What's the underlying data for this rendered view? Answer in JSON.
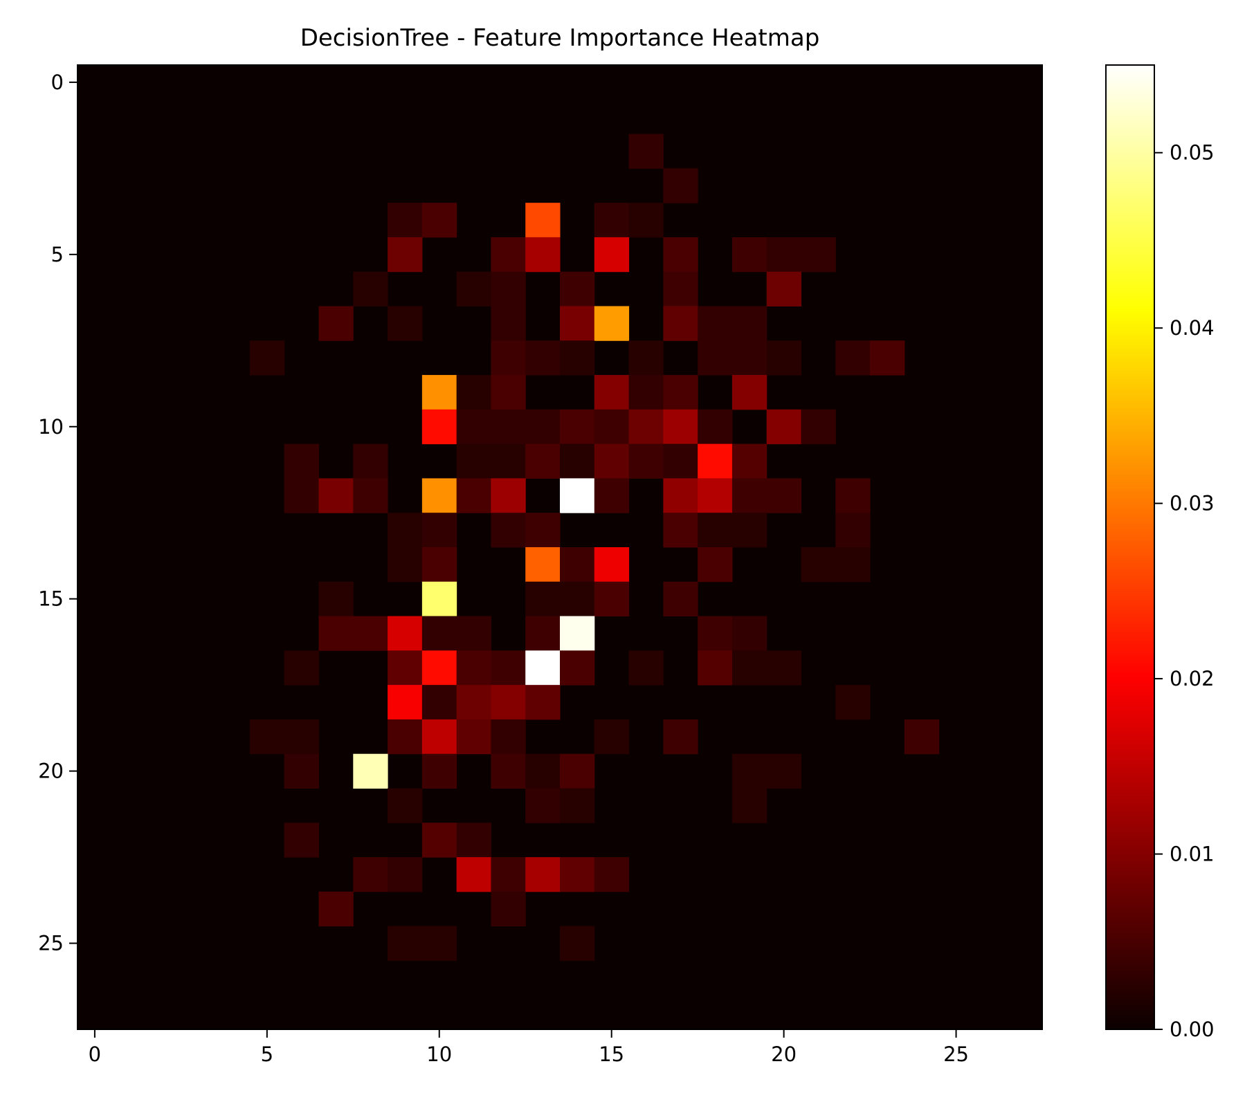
{
  "chart_data": {
    "type": "heatmap",
    "title": "DecisionTree - Feature Importance Heatmap",
    "xlabel": "",
    "ylabel": "",
    "grid": false,
    "shape": [
      28,
      28
    ],
    "colormap": "hot",
    "colorbar": {
      "range": [
        0,
        0.055
      ],
      "ticks": [
        0,
        0.01,
        0.02,
        0.03,
        0.04,
        0.05
      ],
      "tick_labels": [
        "0.00",
        "0.01",
        "0.02",
        "0.03",
        "0.04",
        "0.05"
      ]
    },
    "x_ticks": [
      0,
      5,
      10,
      15,
      20,
      25
    ],
    "x_tick_labels": [
      "0",
      "5",
      "10",
      "15",
      "20",
      "25"
    ],
    "y_ticks": [
      0,
      5,
      10,
      15,
      20,
      25
    ],
    "y_tick_labels": [
      "0",
      "5",
      "10",
      "15",
      "20",
      "25"
    ],
    "cells": [
      [
        16,
        2,
        0.002
      ],
      [
        17,
        3,
        0.002
      ],
      [
        9,
        4,
        0.002
      ],
      [
        10,
        4,
        0.004
      ],
      [
        13,
        4,
        0.026
      ],
      [
        15,
        4,
        0.002
      ],
      [
        16,
        4,
        0.001
      ],
      [
        9,
        5,
        0.007
      ],
      [
        12,
        5,
        0.004
      ],
      [
        13,
        5,
        0.012
      ],
      [
        15,
        5,
        0.016
      ],
      [
        17,
        5,
        0.004
      ],
      [
        19,
        5,
        0.003
      ],
      [
        20,
        5,
        0.002
      ],
      [
        21,
        5,
        0.002
      ],
      [
        8,
        6,
        0.001
      ],
      [
        11,
        6,
        0.001
      ],
      [
        12,
        6,
        0.002
      ],
      [
        14,
        6,
        0.003
      ],
      [
        17,
        6,
        0.003
      ],
      [
        20,
        6,
        0.007
      ],
      [
        7,
        7,
        0.004
      ],
      [
        9,
        7,
        0.001
      ],
      [
        12,
        7,
        0.002
      ],
      [
        14,
        7,
        0.008
      ],
      [
        15,
        7,
        0.033
      ],
      [
        17,
        7,
        0.006
      ],
      [
        18,
        7,
        0.002
      ],
      [
        19,
        7,
        0.002
      ],
      [
        5,
        8,
        0.001
      ],
      [
        12,
        8,
        0.003
      ],
      [
        13,
        8,
        0.002
      ],
      [
        14,
        8,
        0.001
      ],
      [
        16,
        8,
        0.001
      ],
      [
        18,
        8,
        0.002
      ],
      [
        19,
        8,
        0.002
      ],
      [
        20,
        8,
        0.001
      ],
      [
        22,
        8,
        0.002
      ],
      [
        23,
        8,
        0.004
      ],
      [
        10,
        9,
        0.032
      ],
      [
        11,
        9,
        0.001
      ],
      [
        12,
        9,
        0.004
      ],
      [
        15,
        9,
        0.009
      ],
      [
        16,
        9,
        0.002
      ],
      [
        17,
        9,
        0.004
      ],
      [
        19,
        9,
        0.009
      ],
      [
        10,
        10,
        0.021
      ],
      [
        11,
        10,
        0.002
      ],
      [
        12,
        10,
        0.002
      ],
      [
        13,
        10,
        0.002
      ],
      [
        14,
        10,
        0.004
      ],
      [
        15,
        10,
        0.003
      ],
      [
        16,
        10,
        0.007
      ],
      [
        17,
        10,
        0.011
      ],
      [
        18,
        10,
        0.002
      ],
      [
        20,
        10,
        0.009
      ],
      [
        21,
        10,
        0.002
      ],
      [
        6,
        11,
        0.002
      ],
      [
        8,
        11,
        0.002
      ],
      [
        11,
        11,
        0.001
      ],
      [
        12,
        11,
        0.001
      ],
      [
        13,
        11,
        0.004
      ],
      [
        14,
        11,
        0.001
      ],
      [
        15,
        11,
        0.006
      ],
      [
        16,
        11,
        0.003
      ],
      [
        17,
        11,
        0.002
      ],
      [
        18,
        11,
        0.021
      ],
      [
        19,
        11,
        0.005
      ],
      [
        6,
        12,
        0.002
      ],
      [
        7,
        12,
        0.008
      ],
      [
        8,
        12,
        0.003
      ],
      [
        10,
        12,
        0.032
      ],
      [
        11,
        12,
        0.004
      ],
      [
        12,
        12,
        0.011
      ],
      [
        14,
        12,
        0.055
      ],
      [
        15,
        12,
        0.003
      ],
      [
        17,
        12,
        0.01
      ],
      [
        18,
        12,
        0.013
      ],
      [
        19,
        12,
        0.003
      ],
      [
        20,
        12,
        0.003
      ],
      [
        22,
        12,
        0.003
      ],
      [
        9,
        13,
        0.001
      ],
      [
        10,
        13,
        0.002
      ],
      [
        12,
        13,
        0.002
      ],
      [
        13,
        13,
        0.003
      ],
      [
        17,
        13,
        0.004
      ],
      [
        18,
        13,
        0.001
      ],
      [
        19,
        13,
        0.001
      ],
      [
        22,
        13,
        0.002
      ],
      [
        9,
        14,
        0.001
      ],
      [
        10,
        14,
        0.004
      ],
      [
        13,
        14,
        0.028
      ],
      [
        14,
        14,
        0.003
      ],
      [
        15,
        14,
        0.018
      ],
      [
        18,
        14,
        0.004
      ],
      [
        21,
        14,
        0.001
      ],
      [
        22,
        14,
        0.001
      ],
      [
        7,
        15,
        0.001
      ],
      [
        10,
        15,
        0.047
      ],
      [
        13,
        15,
        0.001
      ],
      [
        14,
        15,
        0.001
      ],
      [
        15,
        15,
        0.004
      ],
      [
        17,
        15,
        0.003
      ],
      [
        7,
        16,
        0.004
      ],
      [
        8,
        16,
        0.004
      ],
      [
        9,
        16,
        0.016
      ],
      [
        10,
        16,
        0.002
      ],
      [
        11,
        16,
        0.002
      ],
      [
        13,
        16,
        0.003
      ],
      [
        14,
        16,
        0.054
      ],
      [
        18,
        16,
        0.003
      ],
      [
        19,
        16,
        0.002
      ],
      [
        6,
        17,
        0.001
      ],
      [
        9,
        17,
        0.006
      ],
      [
        10,
        17,
        0.021
      ],
      [
        11,
        17,
        0.004
      ],
      [
        12,
        17,
        0.003
      ],
      [
        13,
        17,
        0.055
      ],
      [
        14,
        17,
        0.004
      ],
      [
        16,
        17,
        0.001
      ],
      [
        18,
        17,
        0.005
      ],
      [
        19,
        17,
        0.001
      ],
      [
        20,
        17,
        0.001
      ],
      [
        9,
        18,
        0.019
      ],
      [
        10,
        18,
        0.002
      ],
      [
        11,
        18,
        0.007
      ],
      [
        12,
        18,
        0.009
      ],
      [
        13,
        18,
        0.006
      ],
      [
        22,
        18,
        0.001
      ],
      [
        5,
        19,
        0.001
      ],
      [
        6,
        19,
        0.001
      ],
      [
        9,
        19,
        0.004
      ],
      [
        10,
        19,
        0.014
      ],
      [
        11,
        19,
        0.006
      ],
      [
        12,
        19,
        0.002
      ],
      [
        15,
        19,
        0.001
      ],
      [
        17,
        19,
        0.003
      ],
      [
        24,
        19,
        0.003
      ],
      [
        6,
        20,
        0.002
      ],
      [
        8,
        20,
        0.051
      ],
      [
        10,
        20,
        0.003
      ],
      [
        12,
        20,
        0.003
      ],
      [
        13,
        20,
        0.001
      ],
      [
        14,
        20,
        0.004
      ],
      [
        19,
        20,
        0.001
      ],
      [
        20,
        20,
        0.001
      ],
      [
        9,
        21,
        0.001
      ],
      [
        13,
        21,
        0.002
      ],
      [
        14,
        21,
        0.001
      ],
      [
        19,
        21,
        0.001
      ],
      [
        6,
        22,
        0.002
      ],
      [
        10,
        22,
        0.005
      ],
      [
        11,
        22,
        0.002
      ],
      [
        8,
        23,
        0.003
      ],
      [
        9,
        23,
        0.002
      ],
      [
        11,
        23,
        0.014
      ],
      [
        12,
        23,
        0.003
      ],
      [
        13,
        23,
        0.012
      ],
      [
        14,
        23,
        0.006
      ],
      [
        15,
        23,
        0.003
      ],
      [
        7,
        24,
        0.004
      ],
      [
        12,
        24,
        0.002
      ],
      [
        9,
        25,
        0.001
      ],
      [
        10,
        25,
        0.001
      ],
      [
        14,
        25,
        0.001
      ]
    ]
  }
}
